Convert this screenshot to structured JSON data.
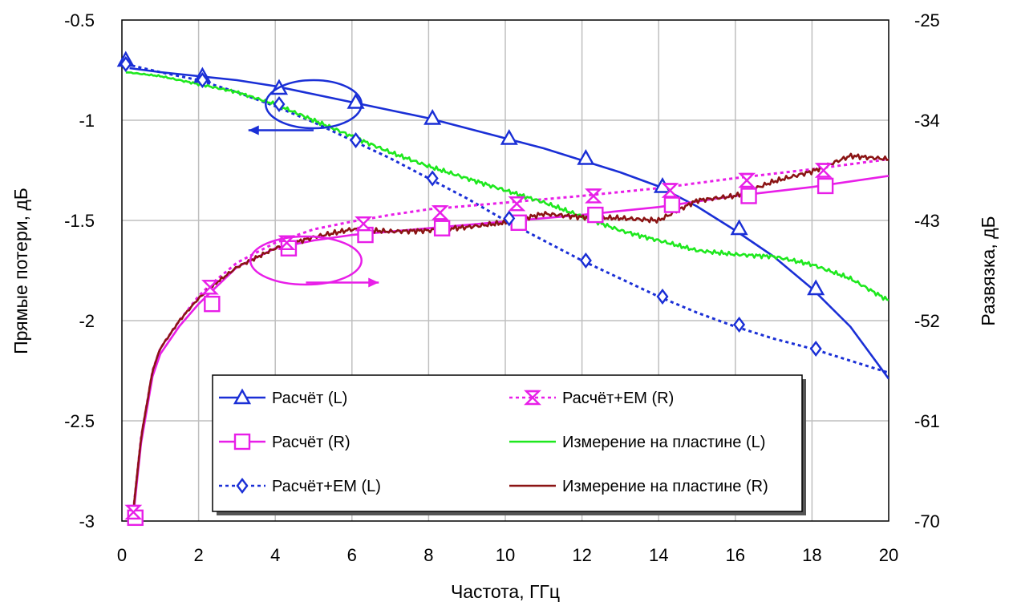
{
  "chart_data": {
    "type": "line",
    "title": "",
    "xlabel": "Частота, ГГц",
    "ylabel_left": "Прямые потери, дБ",
    "ylabel_right": "Развязка, дБ",
    "xlim": [
      0,
      20
    ],
    "ylim_left": [
      -3,
      -0.5
    ],
    "ylim_right": [
      -70,
      -25
    ],
    "x_ticks": [
      "0",
      "2",
      "4",
      "6",
      "8",
      "10",
      "12",
      "14",
      "16",
      "18",
      "20"
    ],
    "y_left_ticks": [
      "-0.5",
      "-1",
      "-1.5",
      "-2",
      "-2.5",
      "-3"
    ],
    "y_right_ticks": [
      "-25",
      "-34",
      "-43",
      "-52",
      "-61",
      "-70"
    ],
    "grid": true,
    "legend_position": "bottom-center",
    "series": [
      {
        "name": "Расчёт (L)",
        "axis": "left",
        "color": "#1a2fd6",
        "style": "solid",
        "marker": "triangle",
        "x": [
          0.2,
          1,
          2,
          3,
          4,
          5,
          6,
          7,
          8,
          9,
          10,
          11,
          12,
          13,
          14,
          15,
          16,
          17,
          18,
          19,
          20
        ],
        "y": [
          -0.74,
          -0.76,
          -0.78,
          -0.8,
          -0.83,
          -0.87,
          -0.91,
          -0.95,
          -0.99,
          -1.04,
          -1.09,
          -1.14,
          -1.2,
          -1.26,
          -1.33,
          -1.43,
          -1.55,
          -1.68,
          -1.84,
          -2.03,
          -2.29
        ],
        "markers_x": [
          0.1,
          2.1,
          4.1,
          6.1,
          8.1,
          10.1,
          12.1,
          14.1,
          16.1,
          18.1
        ],
        "markers_y": [
          -0.7,
          -0.78,
          -0.84,
          -0.91,
          -0.99,
          -1.09,
          -1.19,
          -1.33,
          -1.54,
          -1.84
        ]
      },
      {
        "name": "Расчёт (R)",
        "axis": "right",
        "color": "#e81ee8",
        "style": "solid",
        "marker": "square",
        "x": [
          0.3,
          0.5,
          0.8,
          1,
          1.5,
          2,
          2.3,
          3,
          4,
          5,
          6,
          7,
          8,
          10,
          12,
          14,
          16,
          18,
          20
        ],
        "y": [
          -69.5,
          -63,
          -57,
          -55,
          -52.5,
          -50.5,
          -49.5,
          -47.2,
          -45.5,
          -44.8,
          -44.3,
          -44.0,
          -43.7,
          -43.1,
          -42.5,
          -41.8,
          -40.8,
          -40.0,
          -39.0
        ],
        "markers_x": [
          0.35,
          2.35,
          4.35,
          6.35,
          8.35,
          10.35,
          12.35,
          14.35,
          16.35,
          18.35
        ],
        "markers_y": [
          -69.7,
          -50.5,
          -45.5,
          -44.3,
          -43.7,
          -43.2,
          -42.5,
          -41.6,
          -40.8,
          -39.9
        ]
      },
      {
        "name": "Расчёт+ЕМ (L)",
        "axis": "left",
        "color": "#1a2fd6",
        "style": "dotted",
        "marker": "diamond",
        "x": [
          0.1,
          1,
          2,
          3,
          4,
          5,
          6,
          7,
          8,
          9,
          10,
          11,
          12,
          13,
          14,
          15,
          16,
          17,
          18,
          19,
          20
        ],
        "y": [
          -0.72,
          -0.76,
          -0.8,
          -0.86,
          -0.93,
          -1.01,
          -1.1,
          -1.19,
          -1.29,
          -1.39,
          -1.5,
          -1.6,
          -1.7,
          -1.79,
          -1.88,
          -1.96,
          -2.03,
          -2.09,
          -2.14,
          -2.2,
          -2.26
        ],
        "markers_x": [
          0.1,
          2.1,
          4.1,
          6.1,
          8.1,
          10.1,
          12.1,
          14.1,
          16.1,
          18.1
        ],
        "markers_y": [
          -0.72,
          -0.8,
          -0.92,
          -1.1,
          -1.29,
          -1.49,
          -1.7,
          -1.88,
          -2.02,
          -2.14
        ]
      },
      {
        "name": "Расчёт+ЕМ (R)",
        "axis": "right",
        "color": "#e81ee8",
        "style": "dotted",
        "marker": "hourglass",
        "x": [
          0.3,
          0.5,
          0.8,
          1,
          1.5,
          2,
          2.3,
          3,
          4,
          5,
          6,
          7,
          8,
          10,
          12,
          14,
          16,
          18,
          20
        ],
        "y": [
          -69.0,
          -62.5,
          -56.5,
          -54.5,
          -52,
          -49.8,
          -48.8,
          -46.8,
          -45.0,
          -43.8,
          -43.1,
          -42.5,
          -42.0,
          -41.4,
          -40.8,
          -40.1,
          -39.2,
          -38.4,
          -37.5
        ],
        "markers_x": [
          0.3,
          2.3,
          4.3,
          6.3,
          8.3,
          10.3,
          12.3,
          14.3,
          16.3,
          18.3
        ],
        "markers_y": [
          -69.2,
          -49.0,
          -45.0,
          -43.3,
          -42.3,
          -41.5,
          -40.8,
          -40.3,
          -39.4,
          -38.5
        ]
      },
      {
        "name": "Измерение на пластине (L)",
        "axis": "left",
        "color": "#1ee81e",
        "style": "solid",
        "marker": "none",
        "noise": 0.012,
        "x": [
          0.1,
          1,
          2,
          3,
          4,
          5,
          6,
          7,
          8,
          9,
          10,
          11,
          12,
          13,
          14,
          15,
          16,
          17,
          18,
          19,
          20
        ],
        "y": [
          -0.76,
          -0.78,
          -0.82,
          -0.86,
          -0.92,
          -1.0,
          -1.08,
          -1.16,
          -1.23,
          -1.29,
          -1.35,
          -1.41,
          -1.48,
          -1.55,
          -1.6,
          -1.65,
          -1.67,
          -1.68,
          -1.72,
          -1.79,
          -1.9
        ]
      },
      {
        "name": "Измерение на пластине (R)",
        "axis": "right",
        "color": "#8b1414",
        "style": "solid",
        "marker": "none",
        "noise": 0.25,
        "x": [
          0.3,
          0.5,
          0.8,
          1,
          1.5,
          2,
          2.5,
          3,
          4,
          5,
          6,
          7,
          8,
          9,
          10,
          11,
          12,
          13,
          14,
          15,
          16,
          17,
          18,
          19,
          20
        ],
        "y": [
          -69.0,
          -62.5,
          -56.5,
          -54.5,
          -52,
          -50,
          -48.5,
          -47.2,
          -45.5,
          -44.5,
          -43.8,
          -44.0,
          -43.9,
          -43.6,
          -43.2,
          -42.4,
          -42.7,
          -42.8,
          -43.0,
          -41.2,
          -40.8,
          -39.5,
          -38.6,
          -37.2,
          -37.5
        ]
      }
    ],
    "annotations": [
      {
        "type": "ellipse",
        "color": "#1a2fd6",
        "cx": 5,
        "cy": -0.92,
        "rx": 1.25,
        "ry": 0.12,
        "arrow": "left",
        "arrow_to_x": 3.3,
        "arrow_y": -1.05
      },
      {
        "type": "ellipse",
        "color": "#e81ee8",
        "cx": 4.8,
        "cy": -1.7,
        "rx": 1.45,
        "ry": 0.12,
        "arrow": "right",
        "arrow_to_x": 6.7,
        "arrow_y": -1.81
      }
    ]
  }
}
